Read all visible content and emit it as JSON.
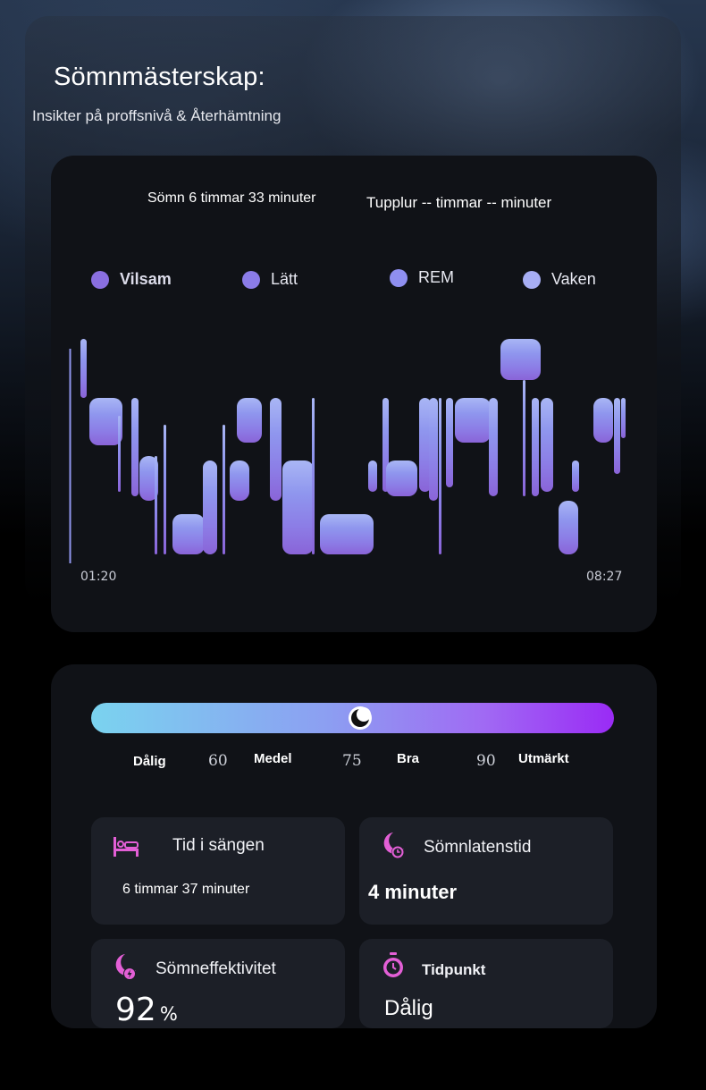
{
  "header": {
    "title": "Sömnmästerskap:",
    "subtitle": "Insikter på proffsnivå & Återhämtning"
  },
  "sleep_summary": {
    "sleep": "Sömn 6 timmar 33 minuter",
    "nap": "Tupplur -- timmar -- minuter"
  },
  "legend": [
    {
      "label": "Vilsam",
      "color": "#8a6fe0",
      "icon": "deep-sleep-dot"
    },
    {
      "label": "Lätt",
      "color": "#8b7ce8",
      "icon": "light-sleep-dot"
    },
    {
      "label": "REM",
      "color": "#8f8ff0",
      "icon": "rem-dot"
    },
    {
      "label": "Vaken",
      "color": "#a7aef4",
      "icon": "awake-dot"
    }
  ],
  "hypnogram": {
    "start_time": "01:20",
    "end_time": "08:27",
    "stage_levels": {
      "Vaken": 3,
      "REM": 2,
      "Lätt": 1,
      "Vilsam": 0
    }
  },
  "score": {
    "scale": [
      {
        "label": "Dålig",
        "kind": "word"
      },
      {
        "label": "60",
        "kind": "num"
      },
      {
        "label": "Medel",
        "kind": "word"
      },
      {
        "label": "75",
        "kind": "num"
      },
      {
        "label": "Bra",
        "kind": "word"
      },
      {
        "label": "90",
        "kind": "num"
      },
      {
        "label": "Utmärkt",
        "kind": "word"
      }
    ],
    "marker_icon": "moon-icon",
    "gradient": [
      "#7ad3ef",
      "#8c9ff2",
      "#a06af3",
      "#9a2bf5"
    ]
  },
  "stats": {
    "time_in_bed": {
      "label": "Tid i sängen",
      "value": "6 timmar 37 minuter",
      "icon": "bed-icon"
    },
    "sleep_latency": {
      "label": "Sömnlatenstid",
      "value": "4 minuter",
      "icon": "moon-clock-icon"
    },
    "sleep_efficiency": {
      "label": "Sömneffektivitet",
      "value": "92",
      "unit": "%",
      "icon": "moon-bolt-icon"
    },
    "timing": {
      "label": "Tidpunkt",
      "value": "Dålig",
      "icon": "stopwatch-icon"
    }
  },
  "colors": {
    "accent_pink": "#e35fd6",
    "card_bg": "#101217",
    "tile_bg": "#1c1f27"
  }
}
